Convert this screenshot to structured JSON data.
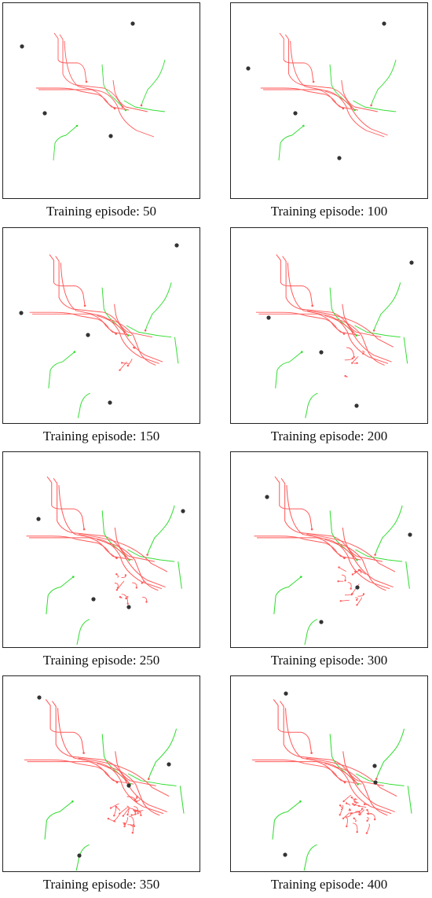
{
  "panels": [
    {
      "caption": "Training episode: 50"
    },
    {
      "caption": "Training episode: 100"
    },
    {
      "caption": "Training episode: 150"
    },
    {
      "caption": "Training episode: 200"
    },
    {
      "caption": "Training episode: 250"
    },
    {
      "caption": "Training episode: 300"
    },
    {
      "caption": "Training episode: 350"
    },
    {
      "caption": "Training episode: 400"
    }
  ],
  "colors": {
    "path_red": "#ff5a5a",
    "path_green": "#33dd33",
    "obstacle": "#333333",
    "frame": "#222222"
  }
}
